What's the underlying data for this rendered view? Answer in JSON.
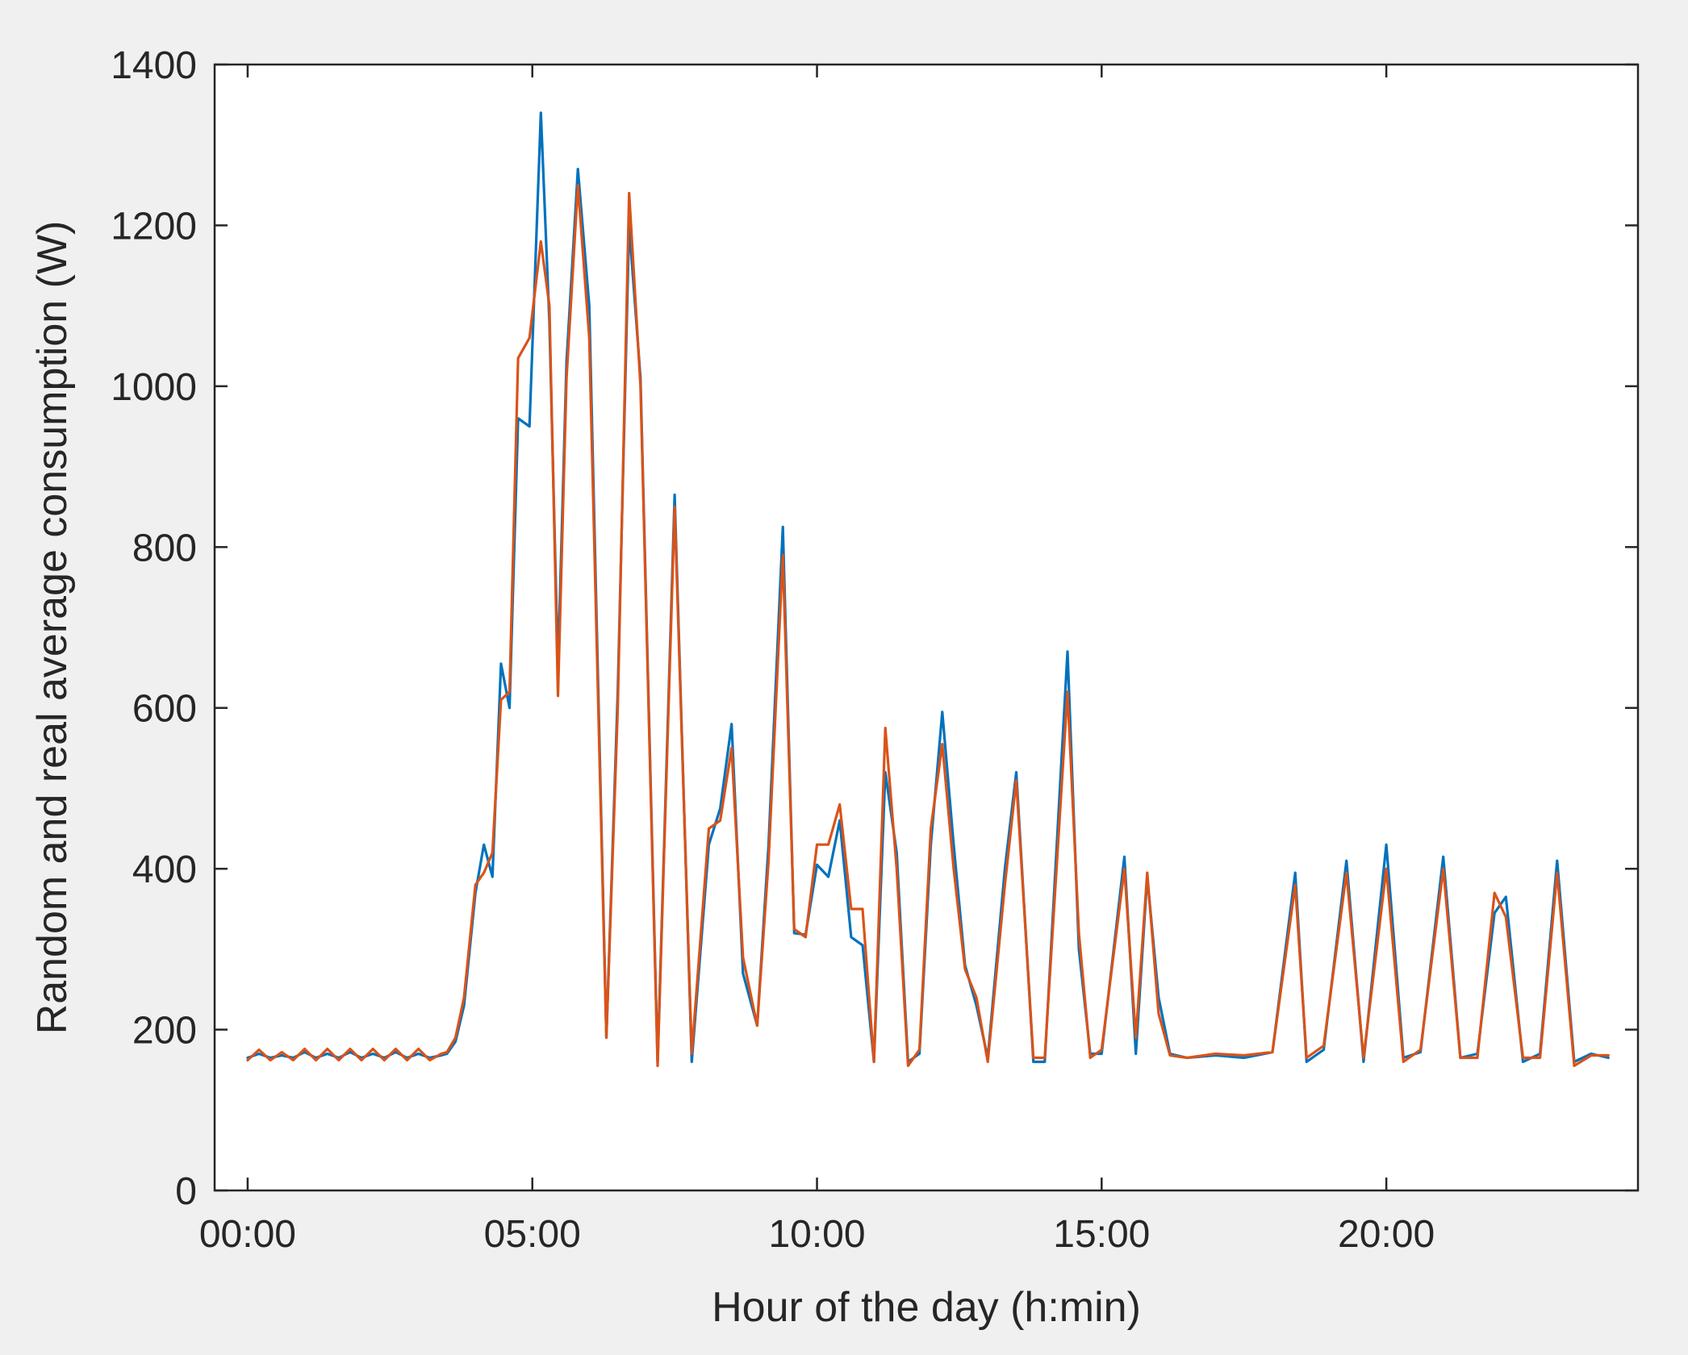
{
  "chart_data": {
    "type": "line",
    "xlabel": "Hour of the day (h:min)",
    "ylabel": "Random and real average consumption (W)",
    "xlim": [
      -0.58,
      24.42
    ],
    "ylim": [
      0,
      1400
    ],
    "x_ticks": [
      0,
      5,
      10,
      15,
      20
    ],
    "x_tick_labels": [
      "00:00",
      "05:00",
      "10:00",
      "15:00",
      "20:00"
    ],
    "y_ticks": [
      0,
      200,
      400,
      600,
      800,
      1000,
      1200,
      1400
    ],
    "y_tick_labels": [
      "0",
      "200",
      "400",
      "600",
      "800",
      "1000",
      "1200",
      "1400"
    ],
    "grid": false,
    "colors": {
      "series1": "#0072BD",
      "series2": "#D95319"
    },
    "series": [
      {
        "values": [
          [
            0.0,
            165
          ],
          [
            0.2,
            170
          ],
          [
            0.4,
            165
          ],
          [
            0.6,
            168
          ],
          [
            0.8,
            165
          ],
          [
            1.0,
            172
          ],
          [
            1.2,
            165
          ],
          [
            1.4,
            170
          ],
          [
            1.6,
            165
          ],
          [
            1.8,
            172
          ],
          [
            2.0,
            165
          ],
          [
            2.2,
            170
          ],
          [
            2.4,
            165
          ],
          [
            2.6,
            172
          ],
          [
            2.8,
            165
          ],
          [
            3.0,
            170
          ],
          [
            3.2,
            165
          ],
          [
            3.4,
            168
          ],
          [
            3.5,
            170
          ],
          [
            3.65,
            185
          ],
          [
            3.8,
            230
          ],
          [
            4.0,
            370
          ],
          [
            4.15,
            430
          ],
          [
            4.3,
            390
          ],
          [
            4.45,
            655
          ],
          [
            4.6,
            600
          ],
          [
            4.75,
            960
          ],
          [
            4.95,
            950
          ],
          [
            5.15,
            1340
          ],
          [
            5.3,
            1080
          ],
          [
            5.45,
            650
          ],
          [
            5.6,
            1030
          ],
          [
            5.8,
            1270
          ],
          [
            6.0,
            1100
          ],
          [
            6.3,
            190
          ],
          [
            6.5,
            620
          ],
          [
            6.7,
            1200
          ],
          [
            6.9,
            1010
          ],
          [
            7.2,
            160
          ],
          [
            7.5,
            865
          ],
          [
            7.8,
            160
          ],
          [
            8.1,
            430
          ],
          [
            8.3,
            475
          ],
          [
            8.5,
            580
          ],
          [
            8.7,
            270
          ],
          [
            8.95,
            205
          ],
          [
            9.15,
            430
          ],
          [
            9.4,
            825
          ],
          [
            9.6,
            320
          ],
          [
            9.8,
            318
          ],
          [
            10.0,
            405
          ],
          [
            10.2,
            390
          ],
          [
            10.4,
            460
          ],
          [
            10.6,
            315
          ],
          [
            10.8,
            305
          ],
          [
            11.0,
            160
          ],
          [
            11.2,
            520
          ],
          [
            11.4,
            420
          ],
          [
            11.6,
            160
          ],
          [
            11.8,
            170
          ],
          [
            12.0,
            430
          ],
          [
            12.2,
            595
          ],
          [
            12.4,
            430
          ],
          [
            12.6,
            280
          ],
          [
            12.8,
            230
          ],
          [
            13.0,
            165
          ],
          [
            13.3,
            400
          ],
          [
            13.5,
            520
          ],
          [
            13.8,
            160
          ],
          [
            14.0,
            160
          ],
          [
            14.4,
            670
          ],
          [
            14.6,
            300
          ],
          [
            14.8,
            170
          ],
          [
            15.0,
            170
          ],
          [
            15.4,
            415
          ],
          [
            15.6,
            170
          ],
          [
            15.8,
            390
          ],
          [
            16.0,
            240
          ],
          [
            16.2,
            170
          ],
          [
            16.5,
            165
          ],
          [
            17.0,
            168
          ],
          [
            17.5,
            165
          ],
          [
            18.0,
            172
          ],
          [
            18.4,
            395
          ],
          [
            18.6,
            160
          ],
          [
            18.9,
            175
          ],
          [
            19.3,
            410
          ],
          [
            19.6,
            160
          ],
          [
            20.0,
            430
          ],
          [
            20.3,
            165
          ],
          [
            20.6,
            172
          ],
          [
            21.0,
            415
          ],
          [
            21.3,
            165
          ],
          [
            21.6,
            170
          ],
          [
            21.9,
            345
          ],
          [
            22.1,
            365
          ],
          [
            22.4,
            160
          ],
          [
            22.7,
            170
          ],
          [
            23.0,
            410
          ],
          [
            23.3,
            160
          ],
          [
            23.6,
            170
          ],
          [
            23.9,
            165
          ]
        ]
      },
      {
        "values": [
          [
            0.0,
            162
          ],
          [
            0.2,
            175
          ],
          [
            0.4,
            162
          ],
          [
            0.6,
            172
          ],
          [
            0.8,
            162
          ],
          [
            1.0,
            176
          ],
          [
            1.2,
            162
          ],
          [
            1.4,
            176
          ],
          [
            1.6,
            162
          ],
          [
            1.8,
            176
          ],
          [
            2.0,
            162
          ],
          [
            2.2,
            176
          ],
          [
            2.4,
            162
          ],
          [
            2.6,
            176
          ],
          [
            2.8,
            162
          ],
          [
            3.0,
            176
          ],
          [
            3.2,
            162
          ],
          [
            3.4,
            170
          ],
          [
            3.5,
            172
          ],
          [
            3.65,
            190
          ],
          [
            3.8,
            240
          ],
          [
            4.0,
            380
          ],
          [
            4.15,
            395
          ],
          [
            4.3,
            420
          ],
          [
            4.45,
            610
          ],
          [
            4.6,
            620
          ],
          [
            4.75,
            1035
          ],
          [
            4.95,
            1060
          ],
          [
            5.15,
            1180
          ],
          [
            5.3,
            1100
          ],
          [
            5.45,
            615
          ],
          [
            5.6,
            1010
          ],
          [
            5.8,
            1250
          ],
          [
            6.0,
            1060
          ],
          [
            6.3,
            190
          ],
          [
            6.5,
            600
          ],
          [
            6.7,
            1240
          ],
          [
            6.9,
            1000
          ],
          [
            7.2,
            155
          ],
          [
            7.5,
            850
          ],
          [
            7.8,
            170
          ],
          [
            8.1,
            450
          ],
          [
            8.3,
            460
          ],
          [
            8.5,
            550
          ],
          [
            8.7,
            290
          ],
          [
            8.95,
            205
          ],
          [
            9.15,
            410
          ],
          [
            9.4,
            790
          ],
          [
            9.6,
            325
          ],
          [
            9.8,
            315
          ],
          [
            10.0,
            430
          ],
          [
            10.2,
            430
          ],
          [
            10.4,
            480
          ],
          [
            10.6,
            350
          ],
          [
            10.8,
            350
          ],
          [
            11.0,
            160
          ],
          [
            11.2,
            575
          ],
          [
            11.4,
            400
          ],
          [
            11.6,
            155
          ],
          [
            11.8,
            175
          ],
          [
            12.0,
            450
          ],
          [
            12.2,
            555
          ],
          [
            12.4,
            400
          ],
          [
            12.6,
            275
          ],
          [
            12.8,
            240
          ],
          [
            13.0,
            160
          ],
          [
            13.3,
            380
          ],
          [
            13.5,
            510
          ],
          [
            13.8,
            165
          ],
          [
            14.0,
            165
          ],
          [
            14.4,
            620
          ],
          [
            14.6,
            320
          ],
          [
            14.8,
            165
          ],
          [
            15.0,
            175
          ],
          [
            15.4,
            400
          ],
          [
            15.6,
            190
          ],
          [
            15.8,
            395
          ],
          [
            16.0,
            220
          ],
          [
            16.2,
            168
          ],
          [
            16.5,
            165
          ],
          [
            17.0,
            170
          ],
          [
            17.5,
            168
          ],
          [
            18.0,
            172
          ],
          [
            18.4,
            380
          ],
          [
            18.6,
            165
          ],
          [
            18.9,
            180
          ],
          [
            19.3,
            395
          ],
          [
            19.6,
            165
          ],
          [
            20.0,
            400
          ],
          [
            20.3,
            160
          ],
          [
            20.6,
            175
          ],
          [
            21.0,
            400
          ],
          [
            21.3,
            165
          ],
          [
            21.6,
            165
          ],
          [
            21.9,
            370
          ],
          [
            22.1,
            340
          ],
          [
            22.4,
            165
          ],
          [
            22.7,
            165
          ],
          [
            23.0,
            395
          ],
          [
            23.3,
            155
          ],
          [
            23.6,
            168
          ],
          [
            23.9,
            168
          ]
        ]
      }
    ]
  }
}
